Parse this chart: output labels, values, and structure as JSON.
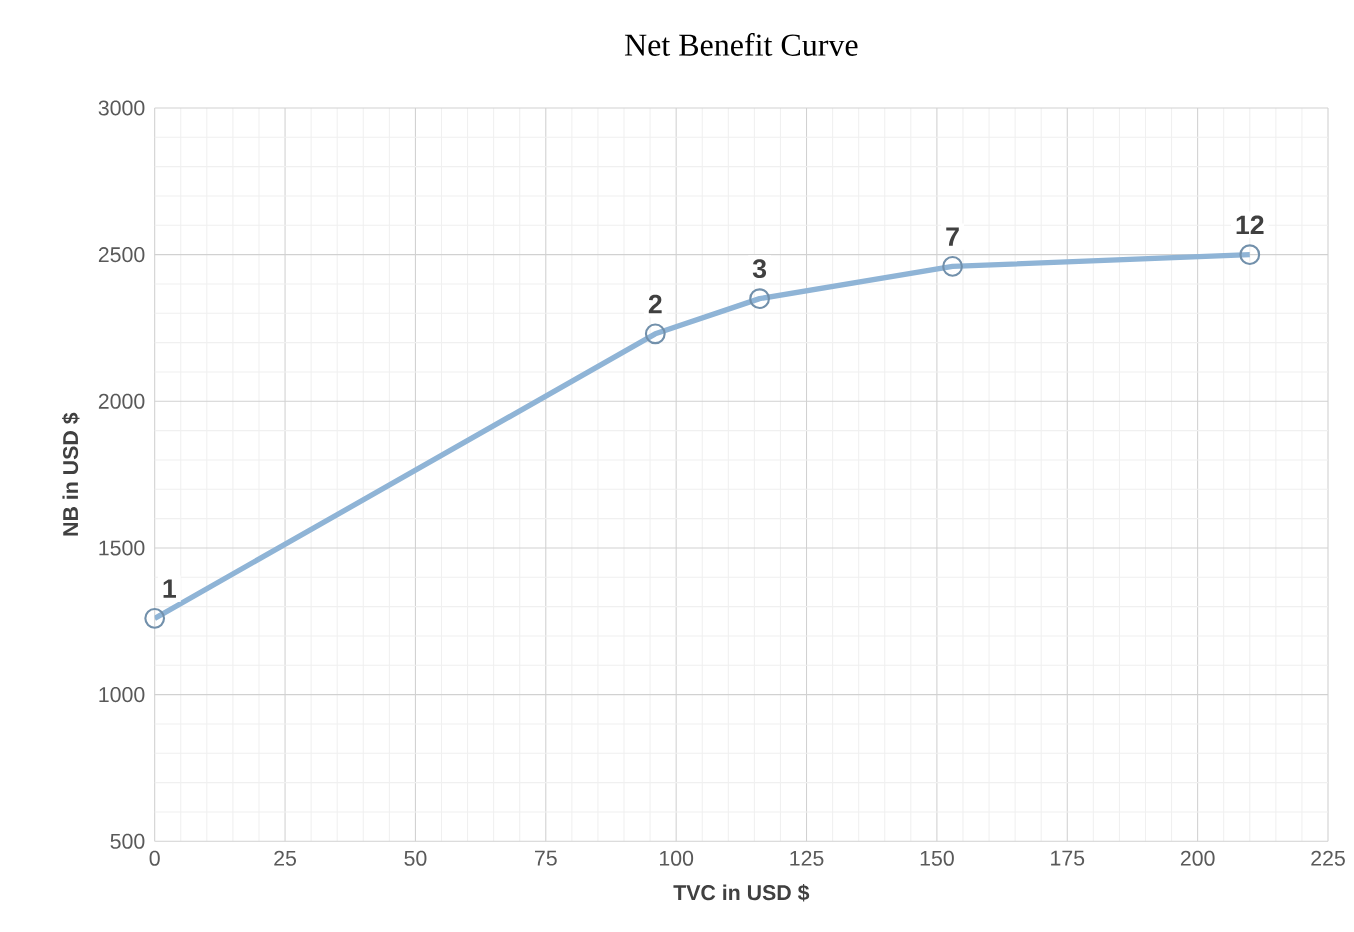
{
  "chart_data": {
    "type": "line",
    "title": "Net Benefit Curve",
    "xlabel": "TVC in USD $",
    "ylabel": "NB in USD $",
    "x": [
      0,
      96,
      116,
      153,
      210
    ],
    "series": [
      {
        "color": "#8fb4d6",
        "values": [
          1260,
          2230,
          2350,
          2460,
          2500
        ]
      }
    ],
    "xlim": [
      0,
      225
    ],
    "ylim": [
      500,
      3000
    ],
    "xticks": [
      0,
      25,
      50,
      75,
      100,
      125,
      150,
      175,
      200,
      225
    ],
    "yticks": [
      500,
      1000,
      1500,
      2000,
      2500,
      3000
    ],
    "grid": true,
    "marker": "circle",
    "line_style": "solid",
    "annotations": [
      {
        "text": "1",
        "x": 0,
        "y": 1260
      },
      {
        "text": "2",
        "x": 96,
        "y": 2230
      },
      {
        "text": "3",
        "x": 116,
        "y": 2350
      },
      {
        "text": "7",
        "x": 153,
        "y": 2460
      },
      {
        "text": "12",
        "x": 210,
        "y": 2500
      }
    ]
  }
}
